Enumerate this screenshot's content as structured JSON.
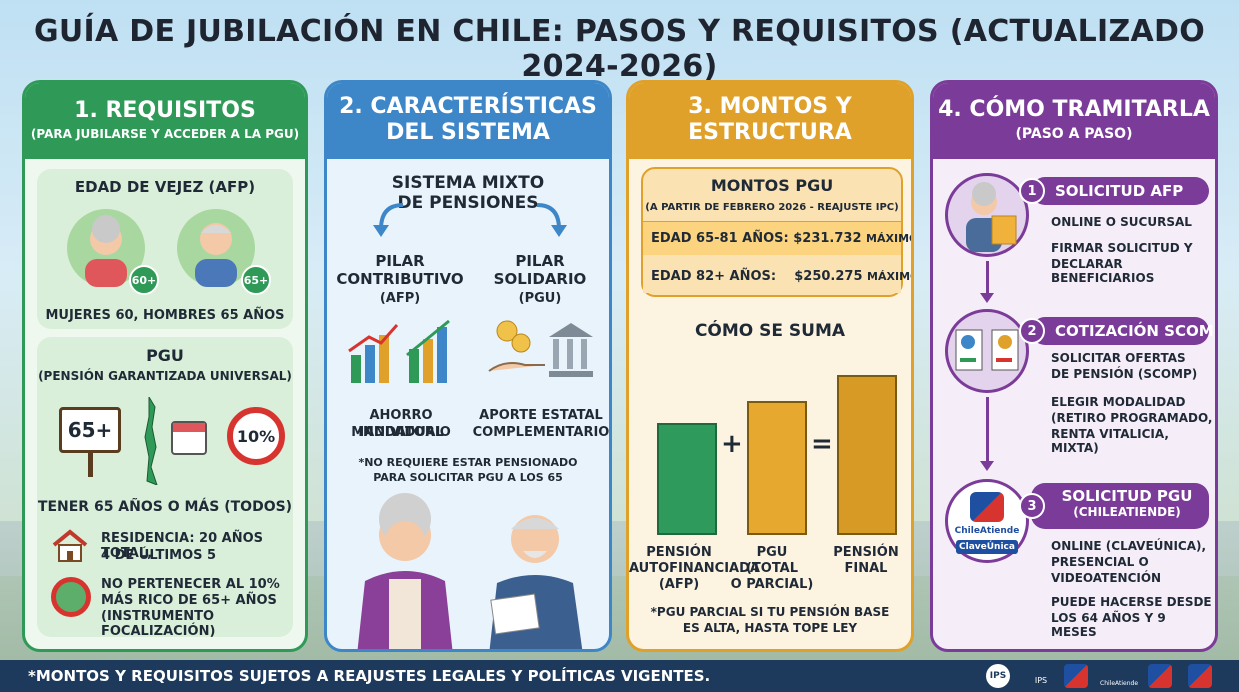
{
  "title": "GUÍA DE JUBILACIÓN EN CHILE: PASOS Y REQUISITOS (ACTUALIZADO 2024-2026)",
  "panel1": {
    "heading": "1. REQUISITOS",
    "subheading": "(PARA JUBILARSE Y ACCEDER A LA PGU)",
    "afp_title": "EDAD DE VEJEZ (AFP)",
    "badge_women": "60+",
    "badge_men": "65+",
    "afp_caption": "MUJERES 60, HOMBRES 65 AÑOS",
    "pgu_title": "PGU",
    "pgu_subtitle": "(PENSIÓN GARANTIZADA UNIVERSAL)",
    "sign_65": "65+",
    "sign_10": "10%",
    "age_rule": "TENER 65 AÑOS O MÁS (TODOS)",
    "residence_line1": "RESIDENCIA: 20 AÑOS TOTAL,",
    "residence_line2": "4 DE ÚLTIMOS 5",
    "wealth_line1": "NO PERTENECER AL 10%",
    "wealth_line2": "MÁS RICO DE 65+ AÑOS",
    "wealth_line3": "(INSTRUMENTO FOCALIZACIÓN)"
  },
  "panel2": {
    "heading_line1": "2. CARACTERÍSTICAS",
    "heading_line2": "DEL SISTEMA",
    "mixed_line1": "SISTEMA MIXTO",
    "mixed_line2": "DE PENSIONES",
    "pillar1_line1": "PILAR",
    "pillar1_line2": "CONTRIBUTIVO",
    "pillar1_line3": "(AFP)",
    "pillar2_line1": "PILAR",
    "pillar2_line2": "SOLIDARIO",
    "pillar2_line3": "(PGU)",
    "savings_line1": "AHORRO INDIVIDUAL",
    "savings_line2": "MANDATORIO",
    "state_line1": "APORTE ESTATAL",
    "state_line2": "COMPLEMENTARIO",
    "note_line1": "*NO REQUIERE ESTAR PENSIONADO",
    "note_line2": "PARA SOLICITAR PGU A LOS 65"
  },
  "panel3": {
    "heading_line1": "3. MONTOS Y",
    "heading_line2": "ESTRUCTURA",
    "amounts_title": "MONTOS PGU",
    "amounts_sub": "(A PARTIR DE FEBRERO 2026 - REAJUSTE IPC)",
    "row1_label": "EDAD 65-81 AÑOS:",
    "row1_value": "$231.732",
    "row1_suffix": "MÁXIMO",
    "row2_label": "EDAD 82+ AÑOS:",
    "row2_value": "$250.275",
    "row2_suffix": "MÁXIMO",
    "sum_title": "CÓMO SE SUMA",
    "plus": "+",
    "equals": "=",
    "bar1_line1": "PENSIÓN",
    "bar1_line2": "AUTOFINANCIADA",
    "bar1_line3": "(AFP)",
    "bar2_line1": "PGU",
    "bar2_line2": "(TOTAL",
    "bar2_line3": "O PARCIAL)",
    "bar3_line1": "PENSIÓN",
    "bar3_line2": "FINAL",
    "note_line1": "*PGU PARCIAL SI TU PENSIÓN BASE",
    "note_line2": "ES ALTA, HASTA TOPE LEY"
  },
  "panel4": {
    "heading": "4. CÓMO TRAMITARLA",
    "subheading": "(PASO A PASO)",
    "step1_num": "1",
    "step1_title": "SOLICITUD AFP",
    "step1_l1": "ONLINE O SUCURSAL",
    "step1_l2": "FIRMAR SOLICITUD Y",
    "step1_l3": "DECLARAR BENEFICIARIOS",
    "step2_num": "2",
    "step2_title": "COTIZACIÓN SCOMP",
    "step2_l1": "SOLICITAR OFERTAS",
    "step2_l2": "DE PENSIÓN (SCOMP)",
    "step2_l3": "ELEGIR MODALIDAD",
    "step2_l4": "(RETIRO PROGRAMADO,",
    "step2_l5": "RENTA VITALICIA, MIXTA)",
    "step3_num": "3",
    "step3_title": "SOLICITUD PGU",
    "step3_sub": "(CHILEATIENDE)",
    "step3_l1": "ONLINE (CLAVEÚNICA),",
    "step3_l2": "PRESENCIAL O",
    "step3_l3": "VIDEOATENCIÓN",
    "step3_l4": "PUEDE HACERSE DESDE",
    "step3_l5": "LOS 64 AÑOS Y 9 MESES",
    "logo_chileatiende": "ChileAtiende",
    "logo_claveunica": "ClaveÚnica"
  },
  "footer": {
    "disclaimer": "*MONTOS Y REQUISITOS SUJETOS A REAJUSTES LEGALES Y POLÍTICAS VIGENTES.",
    "logo_ips": "IPS",
    "logo_ips2": "IPS",
    "logo_chileatiende": "ChileAtiende"
  },
  "colors": {
    "green": "#2f9a57",
    "blue": "#3d86c8",
    "orange": "#e0a12a",
    "purple": "#7b3b98",
    "navy": "#1d3a5c"
  },
  "chart_data": {
    "type": "bar",
    "categories": [
      "PENSIÓN AUTOFINANCIADA (AFP)",
      "PGU (TOTAL O PARCIAL)",
      "PENSIÓN FINAL"
    ],
    "values": [
      0.6,
      0.72,
      0.86
    ],
    "note": "illustrative relative heights, no axis printed"
  }
}
